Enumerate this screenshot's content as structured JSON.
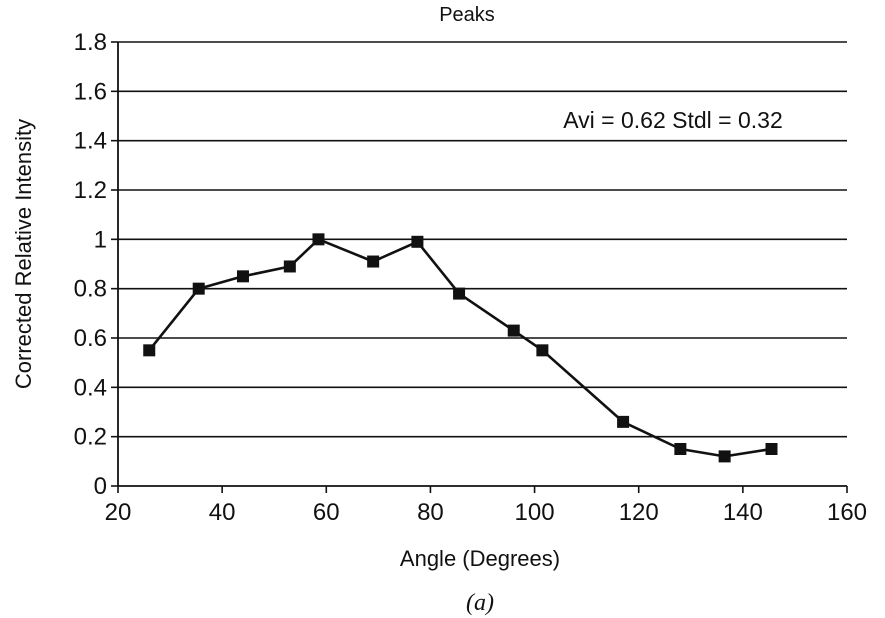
{
  "chart_data": {
    "type": "line",
    "title": "Peaks",
    "xlabel": "Angle (Degrees)",
    "ylabel": "Corrected Relative Intensity",
    "annotation": "Avi = 0.62 Stdl = 0.32",
    "caption": "(a)",
    "xlim": [
      20,
      160
    ],
    "ylim": [
      0,
      1.8
    ],
    "x_ticks": [
      "20",
      "40",
      "60",
      "80",
      "100",
      "120",
      "140",
      "160"
    ],
    "y_ticks": [
      "0",
      "0.2",
      "0.4",
      "0.6",
      "0.8",
      "1",
      "1.2",
      "1.4",
      "1.6",
      "1.8"
    ],
    "grid": "horizontal",
    "marker": "square",
    "color": "#111111",
    "series": [
      {
        "x": [
          26,
          35.5,
          44,
          53,
          58.5,
          69,
          77.5,
          85.5,
          96,
          101.5,
          117,
          128,
          136.5,
          145.5
        ],
        "y": [
          0.55,
          0.8,
          0.85,
          0.89,
          1.0,
          0.91,
          0.99,
          0.78,
          0.63,
          0.55,
          0.26,
          0.15,
          0.12,
          0.15
        ]
      }
    ]
  }
}
